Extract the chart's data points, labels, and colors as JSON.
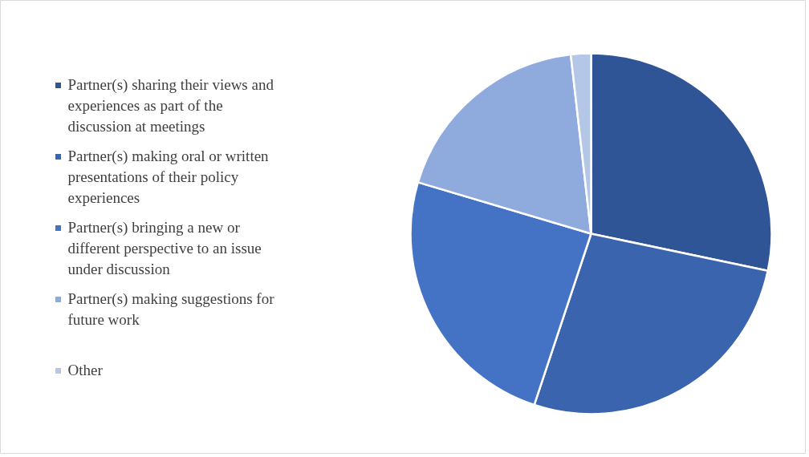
{
  "chart_data": {
    "type": "pie",
    "categories": [
      "Partner(s) sharing their views and experiences as part of the discussion at meetings",
      "Partner(s) making oral or written presentations of their policy experiences",
      "Partner(s) bringing a new or different perspective to an issue under discussion",
      "Partner(s) making suggestions for future work",
      "Other"
    ],
    "values": [
      28.3,
      26.8,
      24.5,
      18.6,
      1.8
    ],
    "colors": [
      "#2f5597",
      "#3a64ad",
      "#4472c4",
      "#8faadc",
      "#b4c7e7"
    ],
    "legend": "left"
  }
}
